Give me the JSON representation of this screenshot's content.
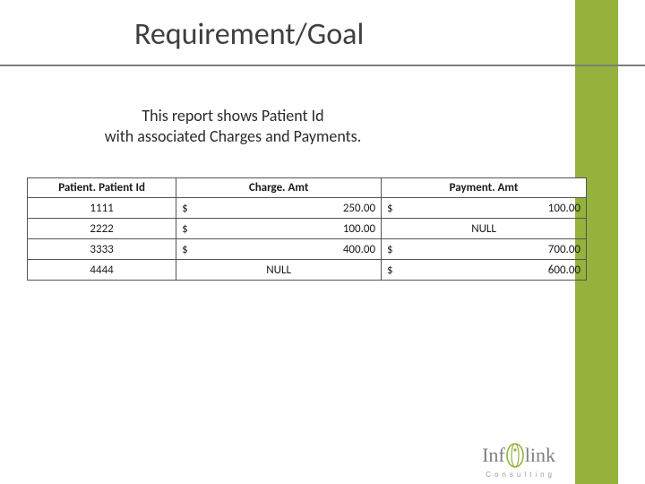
{
  "slide": {
    "title": "Requirement/Goal",
    "description_line1": "This  report shows Patient Id",
    "description_line2": "with associated Charges and Payments."
  },
  "style": {
    "accent_color": "#94b23c",
    "title_color": "#3f3f3f",
    "underline_color": "#7f7f7f",
    "text_color": "#2b2b2b",
    "table_border_color": "#555555",
    "background_color": "#ffffff",
    "title_fontsize": 34,
    "desc_fontsize": 18,
    "table_fontsize": 13
  },
  "table": {
    "columns": [
      "Patient. Patient Id",
      "Charge. Amt",
      "Payment. Amt"
    ],
    "rows": [
      {
        "id": "1111",
        "charge_sym": "$",
        "charge_val": "250.00",
        "payment_sym": "$",
        "payment_val": "100.00",
        "charge_null": false,
        "payment_null": false
      },
      {
        "id": "2222",
        "charge_sym": "$",
        "charge_val": "100.00",
        "payment_sym": "",
        "payment_val": "NULL",
        "charge_null": false,
        "payment_null": true
      },
      {
        "id": "3333",
        "charge_sym": "$",
        "charge_val": "400.00",
        "payment_sym": "$",
        "payment_val": "700.00",
        "charge_null": false,
        "payment_null": false
      },
      {
        "id": "4444",
        "charge_sym": "",
        "charge_val": "NULL",
        "payment_sym": "$",
        "payment_val": "600.00",
        "charge_null": true,
        "payment_null": false
      }
    ]
  },
  "logo": {
    "prefix": "Inf",
    "suffix": "link",
    "subtitle": "Consulting",
    "swirl_color": "#94b23c",
    "text_color": "#808080"
  }
}
